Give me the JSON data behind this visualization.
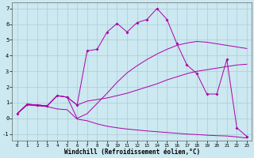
{
  "xlabel": "Windchill (Refroidissement éolien,°C)",
  "background_color": "#cce8f0",
  "grid_color": "#aaccd8",
  "line_color": "#aa00aa",
  "xlim": [
    -0.5,
    23.5
  ],
  "ylim": [
    -1.4,
    7.4
  ],
  "yticks": [
    -1,
    0,
    1,
    2,
    3,
    4,
    5,
    6,
    7
  ],
  "xticks": [
    0,
    1,
    2,
    3,
    4,
    5,
    6,
    7,
    8,
    9,
    10,
    11,
    12,
    13,
    14,
    15,
    16,
    17,
    18,
    19,
    20,
    21,
    22,
    23
  ],
  "series": [
    {
      "x": [
        0,
        1,
        2,
        3,
        4,
        5,
        6,
        7,
        8,
        9,
        10,
        11,
        12,
        13,
        14,
        15,
        16,
        17,
        18,
        19,
        20,
        21,
        22,
        23
      ],
      "y": [
        0.3,
        0.9,
        0.85,
        0.8,
        1.45,
        1.35,
        0.85,
        1.1,
        1.2,
        1.3,
        1.45,
        1.6,
        1.8,
        2.0,
        2.2,
        2.45,
        2.65,
        2.85,
        3.0,
        3.1,
        3.2,
        3.3,
        3.4,
        3.45
      ],
      "has_markers": false
    },
    {
      "x": [
        0,
        1,
        2,
        3,
        4,
        5,
        6,
        7,
        8,
        9,
        10,
        11,
        12,
        13,
        14,
        15,
        16,
        17,
        18,
        19,
        20,
        21,
        22,
        23
      ],
      "y": [
        0.3,
        0.9,
        0.85,
        0.8,
        1.45,
        1.35,
        0.0,
        0.3,
        0.95,
        1.6,
        2.3,
        2.9,
        3.35,
        3.75,
        4.1,
        4.4,
        4.65,
        4.8,
        4.9,
        4.85,
        4.75,
        4.65,
        4.55,
        4.45
      ],
      "has_markers": false
    },
    {
      "x": [
        0,
        1,
        2,
        3,
        4,
        5,
        6,
        7,
        8,
        9,
        10,
        11,
        12,
        13,
        14,
        15,
        16,
        17,
        18,
        19,
        20,
        21,
        22,
        23
      ],
      "y": [
        0.3,
        0.85,
        0.8,
        0.75,
        0.6,
        0.55,
        -0.05,
        -0.15,
        -0.35,
        -0.5,
        -0.6,
        -0.68,
        -0.74,
        -0.8,
        -0.85,
        -0.9,
        -0.95,
        -1.0,
        -1.03,
        -1.07,
        -1.1,
        -1.12,
        -1.18,
        -1.25
      ],
      "has_markers": false
    },
    {
      "x": [
        0,
        1,
        2,
        3,
        4,
        5,
        6,
        7,
        8,
        9,
        10,
        11,
        12,
        13,
        14,
        15,
        16,
        17,
        18,
        19,
        20,
        21,
        22,
        23
      ],
      "y": [
        0.3,
        0.9,
        0.85,
        0.8,
        1.45,
        1.35,
        0.85,
        4.3,
        4.4,
        5.5,
        6.05,
        5.5,
        6.1,
        6.3,
        7.0,
        6.3,
        4.75,
        3.4,
        2.85,
        1.55,
        1.55,
        3.75,
        -0.6,
        -1.15
      ],
      "has_markers": true
    }
  ]
}
